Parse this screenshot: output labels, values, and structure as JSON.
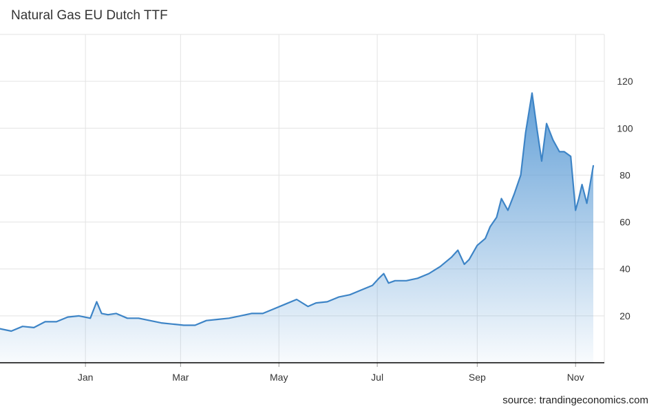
{
  "colors": {
    "line": "#3d84c6",
    "fill_top": "#5b9bd5",
    "grid": "#e3e3e3",
    "axis": "#000000"
  },
  "source_text": "source: trandingeconomics.com",
  "chart_data": {
    "type": "area",
    "title": "Natural Gas EU Dutch TTF",
    "xlabel": "",
    "ylabel": "",
    "ylim": [
      0,
      140
    ],
    "y_axis_position": "right",
    "grid": true,
    "x_range": [
      "2020-11-09",
      "2021-11-12"
    ],
    "x_ticks": [
      {
        "label": "Jan",
        "date": "2021-01-01"
      },
      {
        "label": "Mar",
        "date": "2021-03-01"
      },
      {
        "label": "May",
        "date": "2021-05-01"
      },
      {
        "label": "Jul",
        "date": "2021-07-01"
      },
      {
        "label": "Sep",
        "date": "2021-09-01"
      },
      {
        "label": "Nov",
        "date": "2021-11-01"
      }
    ],
    "y_ticks": [
      20,
      40,
      60,
      80,
      100,
      120
    ],
    "series": [
      {
        "x": [
          "2020-11-09",
          "2020-11-16",
          "2020-11-23",
          "2020-11-30",
          "2020-12-07",
          "2020-12-14",
          "2020-12-21",
          "2020-12-28",
          "2021-01-04",
          "2021-01-08",
          "2021-01-11",
          "2021-01-15",
          "2021-01-20",
          "2021-01-27",
          "2021-02-03",
          "2021-02-10",
          "2021-02-17",
          "2021-02-24",
          "2021-03-03",
          "2021-03-10",
          "2021-03-17",
          "2021-03-24",
          "2021-03-31",
          "2021-04-07",
          "2021-04-14",
          "2021-04-21",
          "2021-04-28",
          "2021-05-05",
          "2021-05-12",
          "2021-05-19",
          "2021-05-24",
          "2021-05-31",
          "2021-06-07",
          "2021-06-14",
          "2021-06-21",
          "2021-06-28",
          "2021-07-02",
          "2021-07-05",
          "2021-07-08",
          "2021-07-12",
          "2021-07-19",
          "2021-07-26",
          "2021-08-02",
          "2021-08-09",
          "2021-08-16",
          "2021-08-20",
          "2021-08-24",
          "2021-08-27",
          "2021-09-01",
          "2021-09-06",
          "2021-09-09",
          "2021-09-13",
          "2021-09-16",
          "2021-09-20",
          "2021-09-24",
          "2021-09-28",
          "2021-10-01",
          "2021-10-05",
          "2021-10-08",
          "2021-10-11",
          "2021-10-14",
          "2021-10-18",
          "2021-10-22",
          "2021-10-25",
          "2021-10-29",
          "2021-11-01",
          "2021-11-03",
          "2021-11-05",
          "2021-11-08",
          "2021-11-10",
          "2021-11-12"
        ],
        "values": [
          14.5,
          13.5,
          15.5,
          15,
          17.5,
          17.5,
          19.5,
          20,
          19,
          26,
          21,
          20.5,
          21,
          19,
          19,
          18,
          17,
          16.5,
          16,
          16,
          18,
          18.5,
          19,
          20,
          21,
          21,
          23,
          25,
          27,
          24,
          25.5,
          26,
          28,
          29,
          31,
          33,
          36,
          38,
          34,
          35,
          35,
          36,
          38,
          41,
          45,
          48,
          42,
          44,
          50,
          53,
          58,
          62,
          70,
          65,
          72,
          80,
          98,
          115,
          100,
          86,
          102,
          95,
          90,
          90,
          88,
          65,
          70,
          76,
          68,
          76,
          84
        ]
      }
    ]
  }
}
